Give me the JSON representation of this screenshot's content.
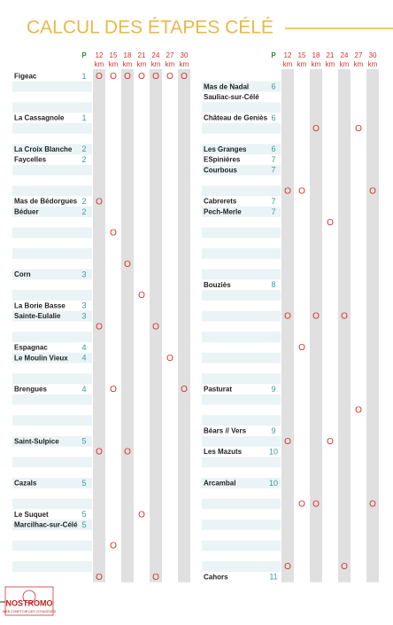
{
  "title": "CALCUL DES ÉTAPES CÉLÉ",
  "header": {
    "p": "P",
    "distances": [
      "12",
      "15",
      "18",
      "21",
      "24",
      "27",
      "30"
    ],
    "unit": "km"
  },
  "tables": [
    {
      "rows": [
        {
          "place": "Figeac",
          "p": 1,
          "stops": [
            "O",
            "O",
            "O",
            "O",
            "O",
            "O",
            "O"
          ]
        },
        {},
        {},
        {},
        {
          "place": "La Cassagnole",
          "p": 1
        },
        {},
        {},
        {
          "place": "La Croix Blanche",
          "p": 2
        },
        {
          "place": "Faycelles",
          "p": 2
        },
        {},
        {},
        {},
        {
          "place": "Mas de Bédorgues",
          "p": 2,
          "stops": [
            "O",
            null,
            null,
            null,
            null,
            null,
            null
          ]
        },
        {
          "place": "Béduer",
          "p": 2
        },
        {},
        {
          "stops": [
            null,
            "O",
            null,
            null,
            null,
            null,
            null
          ]
        },
        {},
        {},
        {
          "stops": [
            null,
            null,
            "O",
            null,
            null,
            null,
            null
          ]
        },
        {
          "place": "Corn",
          "p": 3
        },
        {},
        {
          "stops": [
            null,
            null,
            null,
            "O",
            null,
            null,
            null
          ]
        },
        {
          "place": "La Borie Basse",
          "p": 3
        },
        {
          "place": "Sainte-Eulalie",
          "p": 3
        },
        {
          "stops": [
            "O",
            null,
            null,
            null,
            "O",
            null,
            null
          ]
        },
        {},
        {
          "place": "Espagnac",
          "p": 4
        },
        {
          "place": "Le Moulin Vieux",
          "p": 4,
          "stops": [
            null,
            null,
            null,
            null,
            null,
            "O",
            null
          ]
        },
        {},
        {},
        {
          "place": "Brengues",
          "p": 4,
          "stops": [
            null,
            "O",
            null,
            null,
            null,
            null,
            "O"
          ]
        },
        {},
        {},
        {},
        {},
        {
          "place": "Saint-Sulpice",
          "p": 5
        },
        {
          "stops": [
            "O",
            null,
            "O",
            null,
            null,
            null,
            null
          ]
        },
        {},
        {},
        {
          "place": "Cazals",
          "p": 5
        },
        {},
        {},
        {
          "place": "Le Suquet",
          "p": 5,
          "stops": [
            null,
            null,
            null,
            "O",
            null,
            null,
            null
          ]
        },
        {
          "place": "Marcilhac-sur-Célé",
          "p": 5
        },
        {},
        {
          "stops": [
            null,
            "O",
            null,
            null,
            null,
            null,
            null
          ]
        },
        {},
        {},
        {
          "stops": [
            "O",
            null,
            null,
            null,
            "O",
            null,
            null
          ]
        }
      ]
    },
    {
      "rows": [
        {},
        {
          "place": "Mas de Nadal",
          "p": 6
        },
        {
          "place": "Sauliac-sur-Célé"
        },
        {},
        {
          "place": "Château de Geniès",
          "p": 6
        },
        {
          "stops": [
            null,
            null,
            "O",
            null,
            null,
            "O",
            null
          ]
        },
        {},
        {
          "place": "Les Granges",
          "p": 6
        },
        {
          "place": "ESpinières",
          "p": 7
        },
        {
          "place": "Courbous",
          "p": 7
        },
        {},
        {
          "stops": [
            "O",
            "O",
            null,
            null,
            null,
            null,
            "O"
          ]
        },
        {
          "place": "Cabrerets",
          "p": 7
        },
        {
          "place": "Pech-Merle",
          "p": 7
        },
        {
          "stops": [
            null,
            null,
            null,
            "O",
            null,
            null,
            null
          ]
        },
        {},
        {},
        {},
        {},
        {},
        {
          "place": "Bouziès",
          "p": 8
        },
        {},
        {},
        {
          "stops": [
            "O",
            null,
            "O",
            null,
            "O",
            null,
            null
          ]
        },
        {},
        {},
        {
          "stops": [
            null,
            "O",
            null,
            null,
            null,
            null,
            null
          ]
        },
        {},
        {},
        {},
        {
          "place": "Pasturat",
          "p": 9
        },
        {},
        {
          "stops": [
            null,
            null,
            null,
            null,
            null,
            "O",
            null
          ]
        },
        {},
        {
          "place": "Béars // Vers",
          "p": 9
        },
        {
          "stops": [
            "O",
            null,
            null,
            "O",
            null,
            null,
            null
          ]
        },
        {
          "place": "Les Mazuts",
          "p": 10
        },
        {},
        {},
        {
          "place": "Arcambal",
          "p": 10
        },
        {},
        {
          "stops": [
            null,
            "O",
            "O",
            null,
            null,
            null,
            "O"
          ]
        },
        {},
        {},
        {},
        {},
        {},
        {
          "stops": [
            "O",
            null,
            null,
            null,
            "O",
            null,
            null
          ]
        },
        {
          "place": "Cahors",
          "p": 11
        }
      ]
    }
  ],
  "logo": {
    "name": "NOSTROMO",
    "tagline": "WEB COMPTOIR DES VOYAGEURS"
  }
}
